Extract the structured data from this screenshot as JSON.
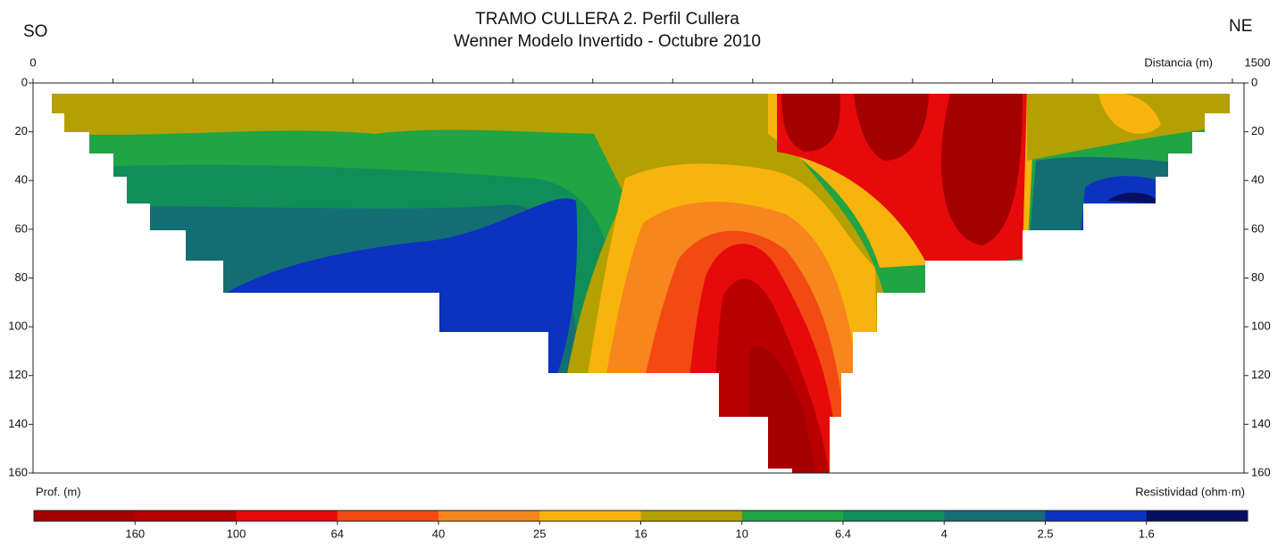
{
  "chart_data": {
    "type": "resistivity-section",
    "title": "TRAMO CULLERA 2. Perfil Cullera",
    "subtitle": "Wenner Modelo Invertido - Octubre 2010",
    "left_label": "SO",
    "right_label": "NE",
    "x_label": "Distancia (m)",
    "y_label": "Prof. (m)",
    "colorbar_label": "Resistividad (ohm·m)",
    "xlim": [
      0,
      1500
    ],
    "xticks": [
      0,
      1500
    ],
    "xminor_ticks": [
      100,
      200,
      300,
      400,
      500,
      600,
      700,
      800,
      900,
      1000,
      1100,
      1200,
      1300,
      1400
    ],
    "ylim": [
      0,
      160
    ],
    "yticks": [
      0,
      20,
      40,
      60,
      80,
      100,
      120,
      140,
      160
    ],
    "y_inverted": true,
    "levels": [
      160,
      100,
      64,
      40,
      25,
      16,
      10,
      6.4,
      4,
      2.5,
      1.6
    ],
    "colors": [
      "#a50000",
      "#b80000",
      "#e60a0a",
      "#f24a12",
      "#f7861e",
      "#f8b40c",
      "#b4a000",
      "#20a444",
      "#0f8e58",
      "#136e74",
      "#0c32c0",
      "#061060"
    ]
  }
}
